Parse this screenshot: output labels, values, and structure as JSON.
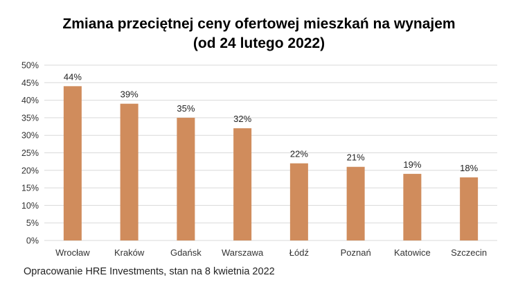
{
  "chart_data": {
    "type": "bar",
    "title": [
      "Zmiana przeciętnej ceny ofertowej mieszkań na wynajem",
      "(od 24 lutego 2022)"
    ],
    "categories": [
      "Wrocław",
      "Kraków",
      "Gdańsk",
      "Warszawa",
      "Łódź",
      "Poznań",
      "Katowice",
      "Szczecin"
    ],
    "values": [
      44,
      39,
      35,
      32,
      22,
      21,
      19,
      18
    ],
    "data_labels": [
      "44%",
      "39%",
      "35%",
      "32%",
      "22%",
      "21%",
      "19%",
      "18%"
    ],
    "y_ticks": [
      "0%",
      "5%",
      "10%",
      "15%",
      "20%",
      "25%",
      "30%",
      "35%",
      "40%",
      "45%",
      "50%"
    ],
    "ylim": [
      0,
      50
    ],
    "grid": true,
    "bar_color": "#d08c5c",
    "legend": "none"
  },
  "footer": {
    "source": "Opracowanie HRE Investments, stan na 8 kwietnia 2022"
  }
}
